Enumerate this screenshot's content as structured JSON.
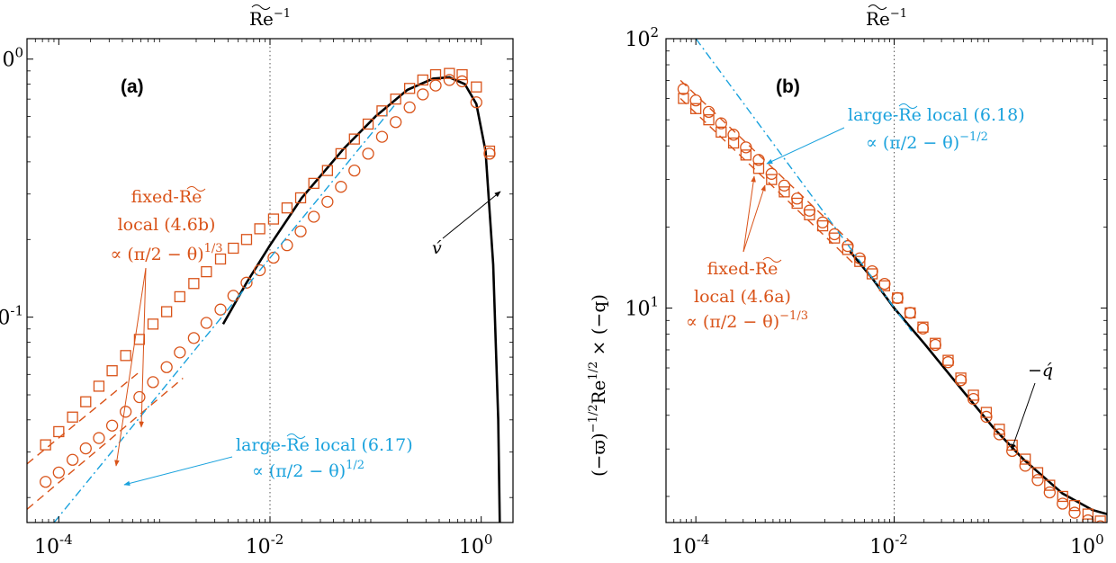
{
  "colors": {
    "black": "#000000",
    "orange": "#D95319",
    "blue": "#0072BD",
    "cyan": "#1AA2DD"
  },
  "top_axis_label": "Re~⁻¹",
  "chart_data": [
    {
      "type": "line",
      "panel": "(a)",
      "xscale": "log",
      "yscale": "log",
      "xlim": [
        5e-05,
        2.0
      ],
      "ylim": [
        0.016,
        1.2
      ],
      "xticks": [
        0.0001,
        0.01,
        1
      ],
      "xtick_labels": [
        "10^-4",
        "10^-2",
        "10^0"
      ],
      "yticks": [
        0.1,
        1
      ],
      "ytick_labels": [
        "10^-1",
        "10^0"
      ],
      "xlabel_top": "Re~⁻¹",
      "ylabel": "",
      "vline": 0.01,
      "series": [
        {
          "name": "v́ (solid)",
          "style": "solid",
          "color": "black",
          "x": [
            0.0036,
            0.006,
            0.01,
            0.02,
            0.05,
            0.1,
            0.2,
            0.35,
            0.5,
            0.7,
            0.9,
            1.1,
            1.3,
            1.45,
            1.5
          ],
          "y": [
            0.094,
            0.136,
            0.19,
            0.29,
            0.45,
            0.6,
            0.76,
            0.84,
            0.85,
            0.8,
            0.67,
            0.44,
            0.16,
            0.04,
            0.016
          ]
        },
        {
          "name": "squares",
          "style": "marker-square",
          "color": "orange",
          "x": [
            7.5e-05,
            0.0001,
            0.000135,
            0.00018,
            0.00024,
            0.00032,
            0.00043,
            0.00058,
            0.00078,
            0.00105,
            0.0014,
            0.0019,
            0.0025,
            0.0034,
            0.0045,
            0.006,
            0.008,
            0.0108,
            0.0145,
            0.0195,
            0.026,
            0.035,
            0.047,
            0.063,
            0.085,
            0.115,
            0.155,
            0.21,
            0.28,
            0.37,
            0.5,
            0.66,
            0.9,
            1.2
          ],
          "y": [
            0.032,
            0.036,
            0.041,
            0.047,
            0.054,
            0.062,
            0.071,
            0.082,
            0.094,
            0.105,
            0.12,
            0.135,
            0.15,
            0.168,
            0.185,
            0.2,
            0.22,
            0.24,
            0.265,
            0.29,
            0.33,
            0.37,
            0.43,
            0.49,
            0.56,
            0.63,
            0.7,
            0.77,
            0.83,
            0.87,
            0.88,
            0.87,
            0.78,
            0.44
          ]
        },
        {
          "name": "circles",
          "style": "marker-circle",
          "color": "orange",
          "x": [
            7.5e-05,
            0.0001,
            0.000135,
            0.00018,
            0.00024,
            0.00032,
            0.00043,
            0.00058,
            0.00078,
            0.00105,
            0.0014,
            0.0019,
            0.0025,
            0.0034,
            0.0045,
            0.006,
            0.008,
            0.0108,
            0.0145,
            0.0195,
            0.026,
            0.035,
            0.047,
            0.063,
            0.085,
            0.115,
            0.155,
            0.21,
            0.28,
            0.37,
            0.5,
            0.66,
            0.9,
            1.2
          ],
          "y": [
            0.023,
            0.025,
            0.028,
            0.031,
            0.034,
            0.038,
            0.043,
            0.049,
            0.056,
            0.064,
            0.073,
            0.083,
            0.095,
            0.107,
            0.121,
            0.136,
            0.152,
            0.17,
            0.19,
            0.215,
            0.245,
            0.28,
            0.32,
            0.37,
            0.43,
            0.5,
            0.57,
            0.65,
            0.73,
            0.79,
            0.83,
            0.82,
            0.68,
            0.43
          ]
        },
        {
          "name": "fixed-Re local (4.6b) upper",
          "style": "dashed",
          "color": "orange",
          "x": [
            5e-05,
            0.0006
          ],
          "y": [
            0.027,
            0.062
          ]
        },
        {
          "name": "fixed-Re local (4.6b) lower",
          "style": "dashed",
          "color": "orange",
          "x": [
            5e-05,
            0.0015
          ],
          "y": [
            0.018,
            0.058
          ]
        },
        {
          "name": "large-Re local (6.17)",
          "style": "dashdot",
          "color": "cyan",
          "x": [
            9e-05,
            0.15
          ],
          "y": [
            0.016,
            0.66
          ]
        }
      ],
      "annotations": [
        {
          "id": "fixed",
          "color": "orange",
          "lines": [
            "fixed-Re~",
            "local (4.6b)",
            "∝ (π/2 − θ)^(1/3)"
          ]
        },
        {
          "id": "large",
          "color": "cyan",
          "lines": [
            "large-Re~ local (6.17)",
            "∝ (π/2 − θ)^(1/2)"
          ]
        },
        {
          "id": "vlabel",
          "color": "black",
          "lines": [
            "v́"
          ]
        }
      ]
    },
    {
      "type": "line",
      "panel": "(b)",
      "xscale": "log",
      "yscale": "log",
      "xlim": [
        5e-05,
        1.4
      ],
      "ylim": [
        1.6,
        100
      ],
      "xticks": [
        0.0001,
        0.01,
        1
      ],
      "xtick_labels": [
        "10^-4",
        "10^-2",
        "10^0"
      ],
      "yticks": [
        10,
        100
      ],
      "ytick_labels": [
        "10^1",
        "10^2"
      ],
      "xlabel_top": "Re~⁻¹",
      "ylabel": "(−ϖ)^(−1/2) Re~^(1/2) × (−q)",
      "vline": 0.01,
      "series": [
        {
          "name": "−q́ (solid)",
          "style": "solid",
          "color": "black",
          "x": [
            0.0036,
            0.006,
            0.01,
            0.02,
            0.05,
            0.1,
            0.2,
            0.5,
            1.0,
            1.4
          ],
          "y": [
            16.2,
            12.9,
            10.0,
            7.4,
            4.9,
            3.6,
            2.75,
            2.05,
            1.78,
            1.72
          ]
        },
        {
          "name": "squares",
          "style": "marker-square",
          "color": "orange",
          "x": [
            7.5e-05,
            0.0001,
            0.000135,
            0.00018,
            0.00024,
            0.00032,
            0.00043,
            0.00058,
            0.00078,
            0.00105,
            0.0014,
            0.0019,
            0.0025,
            0.0034,
            0.0045,
            0.006,
            0.008,
            0.0108,
            0.0145,
            0.0195,
            0.026,
            0.035,
            0.047,
            0.063,
            0.085,
            0.115,
            0.155,
            0.21,
            0.28,
            0.37,
            0.5,
            0.66,
            0.9,
            1.2
          ],
          "y": [
            60,
            55,
            50,
            45,
            41,
            37,
            33,
            30,
            27,
            24.5,
            22.2,
            20.2,
            18.2,
            16.5,
            14.9,
            13.4,
            12.1,
            10.9,
            9.6,
            8.5,
            7.4,
            6.4,
            5.5,
            4.75,
            4.1,
            3.55,
            3.1,
            2.75,
            2.45,
            2.2,
            2.0,
            1.85,
            1.72,
            1.62
          ]
        },
        {
          "name": "circles",
          "style": "marker-circle",
          "color": "orange",
          "x": [
            7.5e-05,
            0.0001,
            0.000135,
            0.00018,
            0.00024,
            0.00032,
            0.00043,
            0.00058,
            0.00078,
            0.00105,
            0.0014,
            0.0019,
            0.0025,
            0.0034,
            0.0045,
            0.006,
            0.008,
            0.0108,
            0.0145,
            0.0195,
            0.026,
            0.035,
            0.047,
            0.063,
            0.085,
            0.115,
            0.155,
            0.21,
            0.28,
            0.37,
            0.5,
            0.66,
            0.9,
            1.2
          ],
          "y": [
            65,
            59,
            53.5,
            48.5,
            44,
            39.5,
            35.5,
            31.5,
            28.5,
            25.5,
            23,
            20.8,
            18.8,
            17,
            15.3,
            13.7,
            12.3,
            10.9,
            9.6,
            8.4,
            7.3,
            6.3,
            5.4,
            4.6,
            3.95,
            3.4,
            2.95,
            2.6,
            2.3,
            2.07,
            1.88,
            1.74,
            1.63,
            1.55
          ]
        },
        {
          "name": "fixed-Re local (4.6a) upper",
          "style": "dashed",
          "color": "orange",
          "x": [
            7e-05,
            0.004
          ],
          "y": [
            70,
            17
          ]
        },
        {
          "name": "fixed-Re local (4.6a) lower",
          "style": "dashed",
          "color": "orange",
          "x": [
            7e-05,
            0.004
          ],
          "y": [
            60,
            14.5
          ]
        },
        {
          "name": "large-Re local (6.18)",
          "style": "dashdot",
          "color": "cyan",
          "x": [
            0.0001,
            0.015
          ],
          "y": [
            100,
            8.2
          ]
        }
      ],
      "annotations": [
        {
          "id": "large",
          "color": "cyan",
          "lines": [
            "large-Re~ local (6.18)",
            "∝ (π/2 − θ)^(−1/2)"
          ]
        },
        {
          "id": "fixed",
          "color": "orange",
          "lines": [
            "fixed-Re~",
            "local (4.6a)",
            "∝ (π/2 − θ)^(−1/3)"
          ]
        },
        {
          "id": "qlabel",
          "color": "black",
          "lines": [
            "−q́"
          ]
        }
      ]
    }
  ]
}
